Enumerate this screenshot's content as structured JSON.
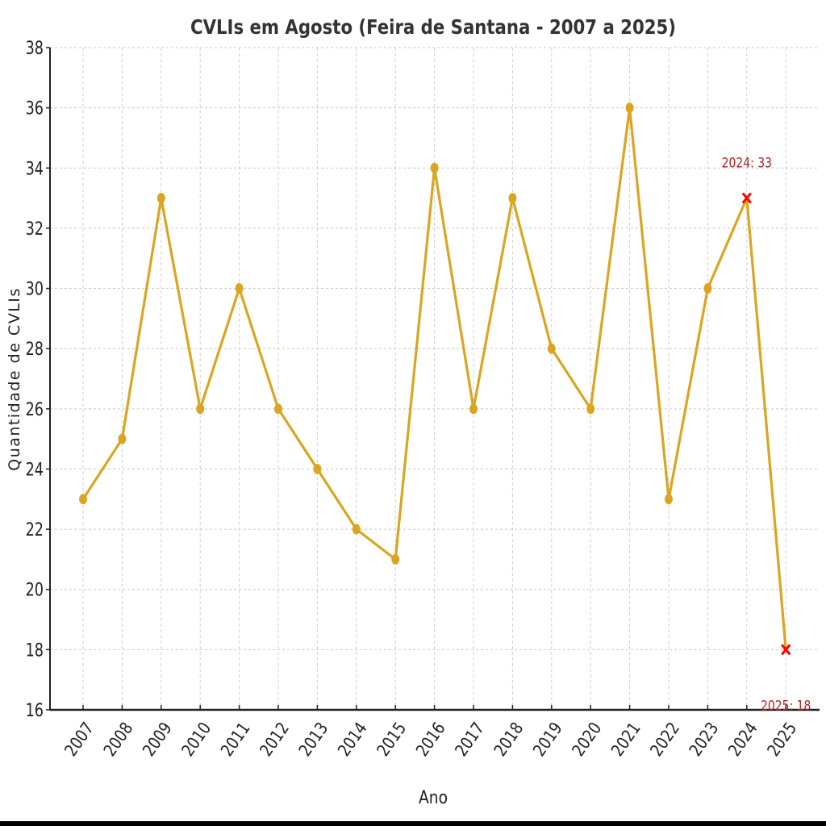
{
  "chart_data": {
    "type": "line",
    "title": "CVLIs em Agosto (Feira de Santana - 2007 a 2025)",
    "xlabel": "Ano",
    "ylabel": "Quantidade de CVLIs",
    "categories": [
      "2007",
      "2008",
      "2009",
      "2010",
      "2011",
      "2012",
      "2013",
      "2014",
      "2015",
      "2016",
      "2017",
      "2018",
      "2019",
      "2020",
      "2021",
      "2022",
      "2023",
      "2024",
      "2025"
    ],
    "series": [
      {
        "name": "CVLIs",
        "values": [
          23,
          25,
          33,
          26,
          30,
          26,
          24,
          22,
          21,
          34,
          26,
          33,
          28,
          26,
          36,
          23,
          30,
          33,
          18
        ],
        "color": "#DAA520"
      }
    ],
    "ylim": [
      16,
      38
    ],
    "yticks": [
      "16",
      "18",
      "20",
      "22",
      "24",
      "26",
      "28",
      "30",
      "32",
      "34",
      "36",
      "38"
    ],
    "grid": true,
    "highlights": [
      {
        "category": "2024",
        "value": 33,
        "label": "2024: 33",
        "marker": "x",
        "color": "#FF0000",
        "label_color": "#B22222",
        "label_position": "above"
      },
      {
        "category": "2025",
        "value": 18,
        "label": "2025: 18",
        "marker": "x",
        "color": "#FF0000",
        "label_color": "#B22222",
        "label_position": "below"
      }
    ]
  }
}
